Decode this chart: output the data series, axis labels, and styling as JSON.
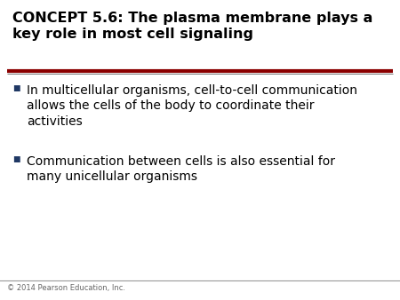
{
  "title_line1": "CONCEPT 5.6: The plasma membrane plays a",
  "title_line2": "key role in most cell signaling",
  "bullet1_line1": "In multicellular organisms, cell-to-cell communication",
  "bullet1_line2": "allows the cells of the body to coordinate their",
  "bullet1_line3": "activities",
  "bullet2_line1": "Communication between cells is also essential for",
  "bullet2_line2": "many unicellular organisms",
  "footer": "© 2014 Pearson Education, Inc.",
  "bg_color": "#ffffff",
  "title_color": "#000000",
  "bullet_color": "#000000",
  "bullet_square_color": "#1F3864",
  "divider_color_top": "#8B0000",
  "divider_color_bottom": "#777777",
  "footer_color": "#666666",
  "title_fontsize": 11.5,
  "bullet_fontsize": 10.0,
  "footer_fontsize": 6.0
}
